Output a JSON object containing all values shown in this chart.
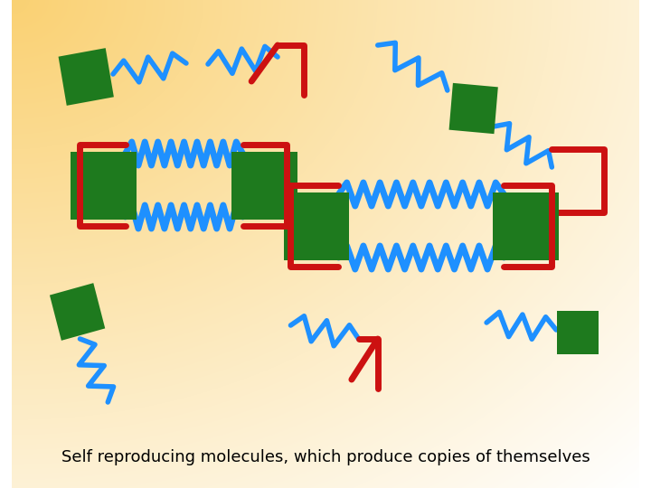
{
  "blue": "#1E90FF",
  "red": "#CC1111",
  "green": "#1E7A1E",
  "lw_zigzag": 4.0,
  "lw_bracket": 5.0,
  "caption": "Self reproducing molecules, which produce copies of themselves",
  "caption_fontsize": 13,
  "bg_orange": [
    0.98,
    0.82,
    0.45
  ],
  "bg_white": [
    1.0,
    1.0,
    1.0
  ]
}
